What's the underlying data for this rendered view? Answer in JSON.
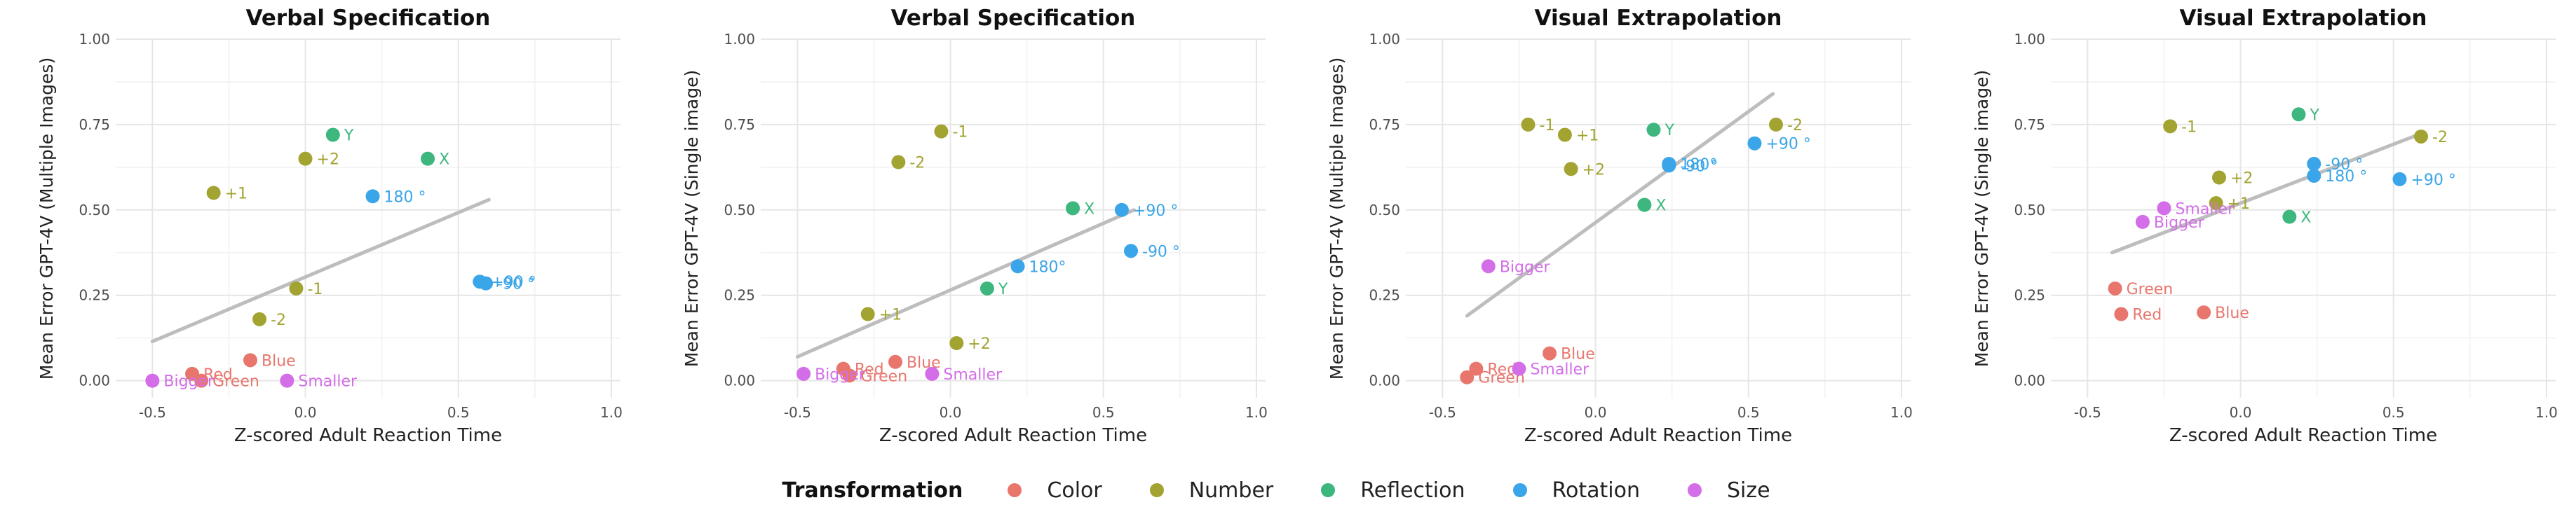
{
  "colors": {
    "Color": "#E8766D",
    "Number": "#A3A332",
    "Reflection": "#3DB77E",
    "Rotation": "#3AA5E8",
    "Size": "#D36EE8",
    "trend": "#bdbdbd"
  },
  "legend": {
    "title": "Transformation",
    "items": [
      "Color",
      "Number",
      "Reflection",
      "Rotation",
      "Size"
    ]
  },
  "chart_data": [
    {
      "type": "scatter",
      "title": "Verbal Specification",
      "xlabel": "Z-scored Adult Reaction Time",
      "ylabel": "Mean Error GPT-4V (Multiple Images)",
      "xlim": [
        -0.62,
        1.03
      ],
      "ylim": [
        -0.05,
        1.0
      ],
      "xticks": [
        "-0.5",
        "0.0",
        "0.5",
        "1.0"
      ],
      "yticks": [
        "0.00",
        "0.25",
        "0.50",
        "0.75",
        "1.00"
      ],
      "grid": true,
      "trend": [
        [
          -0.5,
          0.115
        ],
        [
          0.6,
          0.53
        ]
      ],
      "points": [
        {
          "label": "Red",
          "group": "Color",
          "x": -0.37,
          "y": 0.02
        },
        {
          "label": "Green",
          "group": "Color",
          "x": -0.34,
          "y": 0.0
        },
        {
          "label": "Blue",
          "group": "Color",
          "x": -0.18,
          "y": 0.06
        },
        {
          "label": "+1",
          "group": "Number",
          "x": -0.3,
          "y": 0.55
        },
        {
          "label": "+2",
          "group": "Number",
          "x": 0.0,
          "y": 0.65
        },
        {
          "label": "-1",
          "group": "Number",
          "x": -0.03,
          "y": 0.27
        },
        {
          "label": "-2",
          "group": "Number",
          "x": -0.15,
          "y": 0.18
        },
        {
          "label": "Y",
          "group": "Reflection",
          "x": 0.09,
          "y": 0.72
        },
        {
          "label": "X",
          "group": "Reflection",
          "x": 0.4,
          "y": 0.65
        },
        {
          "label": "180 °",
          "group": "Rotation",
          "x": 0.22,
          "y": 0.54
        },
        {
          "label": "+90 °",
          "group": "Rotation",
          "x": 0.57,
          "y": 0.29
        },
        {
          "label": "-90 °",
          "group": "Rotation",
          "x": 0.59,
          "y": 0.285
        },
        {
          "label": "Bigger",
          "group": "Size",
          "x": -0.5,
          "y": 0.0
        },
        {
          "label": "Smaller",
          "group": "Size",
          "x": -0.06,
          "y": 0.0
        }
      ]
    },
    {
      "type": "scatter",
      "title": "Verbal Specification",
      "xlabel": "Z-scored Adult Reaction Time",
      "ylabel": "Mean Error GPT-4V (Single image)",
      "xlim": [
        -0.62,
        1.03
      ],
      "ylim": [
        -0.05,
        1.0
      ],
      "xticks": [
        "-0.5",
        "0.0",
        "0.5",
        "1.0"
      ],
      "yticks": [
        "0.00",
        "0.25",
        "0.50",
        "0.75",
        "1.00"
      ],
      "grid": true,
      "trend": [
        [
          -0.5,
          0.07
        ],
        [
          0.6,
          0.5
        ]
      ],
      "points": [
        {
          "label": "Red",
          "group": "Color",
          "x": -0.35,
          "y": 0.035
        },
        {
          "label": "Green",
          "group": "Color",
          "x": -0.33,
          "y": 0.015
        },
        {
          "label": "Blue",
          "group": "Color",
          "x": -0.18,
          "y": 0.055
        },
        {
          "label": "-1",
          "group": "Number",
          "x": -0.03,
          "y": 0.73
        },
        {
          "label": "-2",
          "group": "Number",
          "x": -0.17,
          "y": 0.64
        },
        {
          "label": "+1",
          "group": "Number",
          "x": -0.27,
          "y": 0.195
        },
        {
          "label": "+2",
          "group": "Number",
          "x": 0.02,
          "y": 0.11
        },
        {
          "label": "X",
          "group": "Reflection",
          "x": 0.4,
          "y": 0.505
        },
        {
          "label": "Y",
          "group": "Reflection",
          "x": 0.12,
          "y": 0.27
        },
        {
          "label": "+90 °",
          "group": "Rotation",
          "x": 0.56,
          "y": 0.5
        },
        {
          "label": "180°",
          "group": "Rotation",
          "x": 0.22,
          "y": 0.335
        },
        {
          "label": "-90 °",
          "group": "Rotation",
          "x": 0.59,
          "y": 0.38
        },
        {
          "label": "Bigger",
          "group": "Size",
          "x": -0.48,
          "y": 0.02
        },
        {
          "label": "Smaller",
          "group": "Size",
          "x": -0.06,
          "y": 0.02
        }
      ]
    },
    {
      "type": "scatter",
      "title": "Visual Extrapolation",
      "xlabel": "Z-scored Adult Reaction Time",
      "ylabel": "Mean Error GPT-4V (Multiple Images)",
      "xlim": [
        -0.62,
        1.03
      ],
      "ylim": [
        -0.05,
        1.0
      ],
      "xticks": [
        "-0.5",
        "0.0",
        "0.5",
        "1.0"
      ],
      "yticks": [
        "0.00",
        "0.25",
        "0.50",
        "0.75",
        "1.00"
      ],
      "grid": true,
      "trend": [
        [
          -0.42,
          0.19
        ],
        [
          0.58,
          0.84
        ]
      ],
      "points": [
        {
          "label": "Red",
          "group": "Color",
          "x": -0.39,
          "y": 0.035
        },
        {
          "label": "Green",
          "group": "Color",
          "x": -0.42,
          "y": 0.01
        },
        {
          "label": "Blue",
          "group": "Color",
          "x": -0.15,
          "y": 0.08
        },
        {
          "label": "-1",
          "group": "Number",
          "x": -0.22,
          "y": 0.75
        },
        {
          "label": "+1",
          "group": "Number",
          "x": -0.1,
          "y": 0.72
        },
        {
          "label": "+2",
          "group": "Number",
          "x": -0.08,
          "y": 0.62
        },
        {
          "label": "-2",
          "group": "Number",
          "x": 0.59,
          "y": 0.75
        },
        {
          "label": "Y",
          "group": "Reflection",
          "x": 0.19,
          "y": 0.735
        },
        {
          "label": "X",
          "group": "Reflection",
          "x": 0.16,
          "y": 0.515
        },
        {
          "label": "180°",
          "group": "Rotation",
          "x": 0.24,
          "y": 0.635
        },
        {
          "label": "-90 °",
          "group": "Rotation",
          "x": 0.24,
          "y": 0.63
        },
        {
          "label": "+90 °",
          "group": "Rotation",
          "x": 0.52,
          "y": 0.695
        },
        {
          "label": "Bigger",
          "group": "Size",
          "x": -0.35,
          "y": 0.335
        },
        {
          "label": "Smaller",
          "group": "Size",
          "x": -0.25,
          "y": 0.035
        }
      ]
    },
    {
      "type": "scatter",
      "title": "Visual Extrapolation",
      "xlabel": "Z-scored Adult Reaction Time",
      "ylabel": "Mean Error GPT-4V (Single image)",
      "xlim": [
        -0.62,
        1.03
      ],
      "ylim": [
        -0.05,
        1.0
      ],
      "xticks": [
        "-0.5",
        "0.0",
        "0.5",
        "1.0"
      ],
      "yticks": [
        "0.00",
        "0.25",
        "0.50",
        "0.75",
        "1.00"
      ],
      "grid": true,
      "trend": [
        [
          -0.42,
          0.375
        ],
        [
          0.58,
          0.72
        ]
      ],
      "points": [
        {
          "label": "Green",
          "group": "Color",
          "x": -0.41,
          "y": 0.27
        },
        {
          "label": "Red",
          "group": "Color",
          "x": -0.39,
          "y": 0.195
        },
        {
          "label": "Blue",
          "group": "Color",
          "x": -0.12,
          "y": 0.2
        },
        {
          "label": "-1",
          "group": "Number",
          "x": -0.23,
          "y": 0.745
        },
        {
          "label": "+2",
          "group": "Number",
          "x": -0.07,
          "y": 0.595
        },
        {
          "label": "+1",
          "group": "Number",
          "x": -0.08,
          "y": 0.52
        },
        {
          "label": "-2",
          "group": "Number",
          "x": 0.59,
          "y": 0.715
        },
        {
          "label": "Y",
          "group": "Reflection",
          "x": 0.19,
          "y": 0.78
        },
        {
          "label": "X",
          "group": "Reflection",
          "x": 0.16,
          "y": 0.48
        },
        {
          "label": "-90 °",
          "group": "Rotation",
          "x": 0.24,
          "y": 0.635
        },
        {
          "label": "180 °",
          "group": "Rotation",
          "x": 0.24,
          "y": 0.6
        },
        {
          "label": "+90 °",
          "group": "Rotation",
          "x": 0.52,
          "y": 0.59
        },
        {
          "label": "Bigger",
          "group": "Size",
          "x": -0.32,
          "y": 0.465
        },
        {
          "label": "Smaller",
          "group": "Size",
          "x": -0.25,
          "y": 0.505
        }
      ]
    }
  ]
}
